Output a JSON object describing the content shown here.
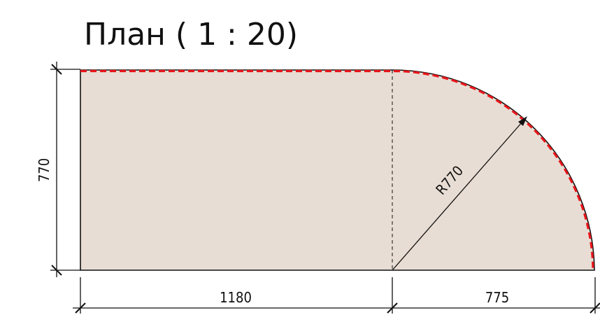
{
  "title": "План ( 1 : 20)",
  "dimensions": {
    "height": "770",
    "width_straight": "1180",
    "width_round": "775",
    "radius": "R770"
  },
  "colors": {
    "fill": "#e8ddd4",
    "outline": "#111111",
    "highlight": "#e8161b"
  }
}
